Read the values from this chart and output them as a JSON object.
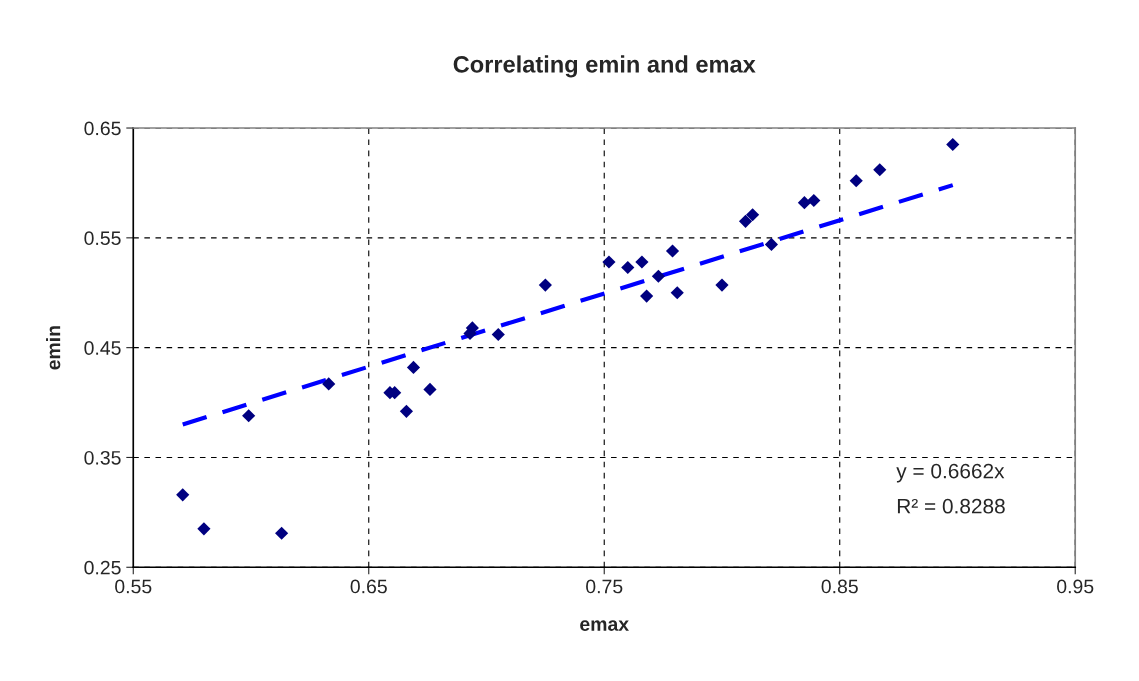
{
  "chart_data": {
    "type": "scatter",
    "title": "Correlating emin and emax",
    "xlabel": "emax",
    "ylabel": "emin",
    "series": [
      {
        "color": "#000080",
        "marker": "diamond",
        "x": [
          0.571,
          0.58,
          0.613,
          0.599,
          0.633,
          0.659,
          0.661,
          0.666,
          0.669,
          0.676,
          0.693,
          0.694,
          0.705,
          0.725,
          0.752,
          0.76,
          0.766,
          0.768,
          0.773,
          0.779,
          0.781,
          0.8,
          0.81,
          0.813,
          0.821,
          0.835,
          0.839,
          0.857,
          0.867,
          0.898
        ],
        "values": [
          0.316,
          0.285,
          0.281,
          0.388,
          0.417,
          0.409,
          0.409,
          0.392,
          0.432,
          0.412,
          0.463,
          0.468,
          0.462,
          0.507,
          0.528,
          0.523,
          0.528,
          0.497,
          0.515,
          0.538,
          0.5,
          0.507,
          0.565,
          0.571,
          0.544,
          0.582,
          0.584,
          0.602,
          0.612,
          0.635
        ]
      },
      {
        "type": "line",
        "color": "#0000ff",
        "line_style": "dashed",
        "x": [
          0.571,
          0.898
        ],
        "values": [
          0.38,
          0.598
        ]
      }
    ],
    "xlim": [
      0.55,
      0.95
    ],
    "xticks": [
      0.55,
      0.65,
      0.75,
      0.85,
      0.95
    ],
    "ylim": [
      0.25,
      0.65
    ],
    "yticks": [
      0.25,
      0.35,
      0.45,
      0.55,
      0.65
    ],
    "grid": true,
    "legend": false,
    "annotations": [
      "y = 0.6662x",
      "R² = 0.8288"
    ]
  }
}
